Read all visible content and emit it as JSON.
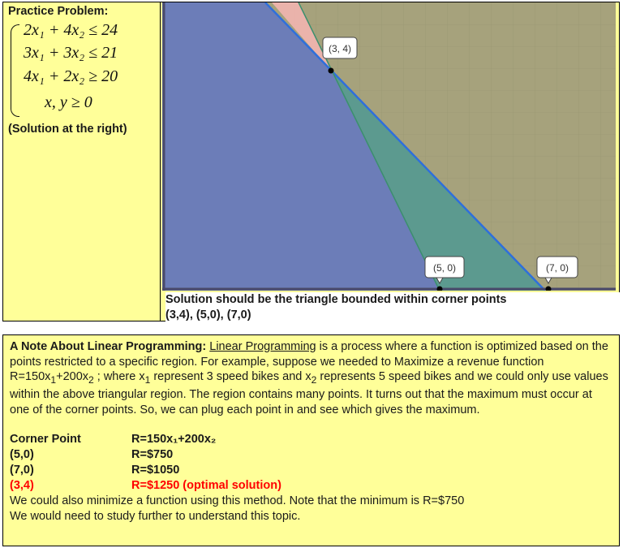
{
  "practice": {
    "title": "Practice Problem:",
    "constraints": [
      "2x₁ + 4x₂ ≤ 24",
      "3x₁ + 3x₂ ≤ 21",
      "4x₁ + 2x₂ ≥ 20",
      "x, y ≥ 0"
    ],
    "solution_note": "(Solution at the right)"
  },
  "graph": {
    "point_labels": [
      "(3, 4)",
      "(5, 0)",
      "(7, 0)"
    ],
    "colors": {
      "blue_region": "#6c7db8",
      "olive_region": "#a6a27c",
      "pink_region": "#f2b5b0",
      "teal_region": "#5c9a8f",
      "line": "#2e6fdc"
    }
  },
  "caption": {
    "line1": "Solution should be the triangle bounded within corner points",
    "line2": "(3,4), (5,0), (7,0)"
  },
  "note": {
    "title": "A Note About Linear Programming:",
    "link": "Linear Programming",
    "text_part1": " is a process where a function is optimized based on the points restricted to a specific region. For example, suppose we needed to Maximize a revenue function R=150x",
    "sub1": "1",
    "text_part2": "+200x",
    "sub2": "2",
    "text_part3": " ; where x",
    "sub3": "1",
    "text_part4": " represent 3 speed bikes and x",
    "sub4": "2",
    "text_part5": " represents 5 speed bikes and we could only use values within the above triangular region. The region contains many points. It turns out that the maximum must occur at one of the corner points. So, we can plug each point in and see which gives the maximum.",
    "table_header_point": "Corner Point",
    "table_header_func": "R=150x₁+200x₂",
    "rows": [
      {
        "point": "(5,0)",
        "value": "R=$750"
      },
      {
        "point": "(7,0)",
        "value": "R=$1050"
      },
      {
        "point": "(3,4)",
        "value": "R=$1250  (optimal solution)"
      }
    ],
    "tail1": "We could also minimize a function using this method. Note that the minimum is R=$750",
    "tail2": "We would need to study further to understand this topic."
  }
}
